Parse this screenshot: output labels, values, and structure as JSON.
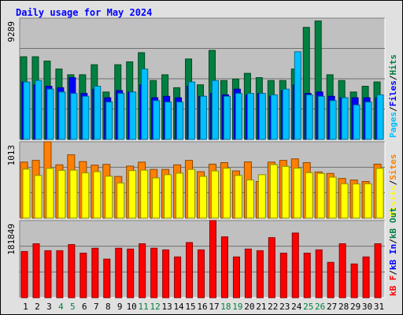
{
  "title": "Daily usage for May 2024",
  "chart_data": {
    "type": "bar",
    "title": "Daily usage for May 2024",
    "categories": [
      "1",
      "2",
      "3",
      "4",
      "5",
      "6",
      "7",
      "8",
      "9",
      "10",
      "11",
      "12",
      "13",
      "14",
      "15",
      "16",
      "17",
      "18",
      "19",
      "20",
      "21",
      "22",
      "23",
      "24",
      "25",
      "26",
      "27",
      "28",
      "29",
      "30",
      "31"
    ],
    "weekend_days": [
      "4",
      "5",
      "11",
      "12",
      "18",
      "19",
      "25",
      "26"
    ],
    "panels": [
      {
        "id": "hits",
        "ymax_label": "9289",
        "ymax": 9289,
        "legend": [
          "Pages",
          "/",
          "Files",
          "/",
          "Hits"
        ],
        "legend_colors": [
          "#00c0ff",
          "#000000",
          "#0000ff",
          "#000000",
          "#008040"
        ],
        "series": [
          {
            "name": "Hits",
            "color": "#008040",
            "values": [
              6330,
              6330,
              6000,
              5390,
              4950,
              4950,
              5720,
              3630,
              5720,
              5940,
              6640,
              4510,
              4950,
              3960,
              6160,
              4180,
              6820,
              4510,
              4620,
              5060,
              4730,
              4510,
              4510,
              5390,
              8580,
              9070,
              4950,
              4510,
              3630,
              4070,
              4400
            ]
          },
          {
            "name": "Files",
            "color": "#0000ff",
            "values": [
              4400,
              4180,
              4070,
              3960,
              4730,
              3520,
              3850,
              3190,
              3740,
              3630,
              4180,
              3190,
              3300,
              3190,
              4070,
              3300,
              3520,
              3410,
              3850,
              3410,
              3520,
              3300,
              3740,
              4180,
              3520,
              3630,
              3300,
              3190,
              3190,
              3190,
              3190
            ]
          },
          {
            "name": "Pages",
            "color": "#00c0ff",
            "values": [
              4400,
              4510,
              3850,
              3630,
              3520,
              3300,
              4070,
              2860,
              3520,
              3630,
              5390,
              2970,
              2860,
              2860,
              4400,
              3300,
              4510,
              3300,
              3520,
              3520,
              3520,
              3410,
              3850,
              6710,
              3410,
              3300,
              2970,
              3190,
              2640,
              2860,
              3410
            ]
          }
        ]
      },
      {
        "id": "visits",
        "ymax_label": "1013",
        "ymax": 1013,
        "legend": [
          "Visits",
          "/",
          "Sites"
        ],
        "legend_colors": [
          "#ffff00",
          "#000000",
          "#ff8000"
        ],
        "series": [
          {
            "name": "Sites",
            "color": "#ff8000",
            "values": [
              743,
              766,
              1013,
              707,
              840,
              750,
              703,
              713,
              553,
              690,
              743,
              646,
              646,
              707,
              766,
              616,
              716,
              736,
              626,
              746,
              486,
              743,
              766,
              786,
              736,
              613,
              593,
              526,
              506,
              486,
              716
            ]
          },
          {
            "name": "Visits",
            "color": "#ffff00",
            "values": [
              650,
              566,
              660,
              633,
              636,
              600,
              616,
              556,
              466,
              630,
              636,
              533,
              576,
              596,
              646,
              553,
              626,
              663,
              566,
              506,
              576,
              710,
              686,
              663,
              603,
              593,
              543,
              456,
              453,
              456,
              660
            ]
          }
        ]
      },
      {
        "id": "kbytes",
        "ymax_label": "181849",
        "ymax": 181849,
        "legend": [
          "kB F",
          "/",
          "kB In",
          "/",
          "kB Out"
        ],
        "legend_colors": [
          "#ff0000",
          "#000000",
          "#0000ff",
          "#000000",
          "#008040"
        ],
        "series": [
          {
            "name": "kB F",
            "color": "#ff0000",
            "values": [
              108800,
              127040,
              110720,
              110720,
              125120,
              104960,
              116480,
              90880,
              116480,
              114560,
              127040,
              116480,
              112640,
              96000,
              129920,
              112640,
              181849,
              143360,
              96000,
              114560,
              110720,
              141440,
              104960,
              152320,
              104960,
              112640,
              83200,
              127040,
              79360,
              96000,
              127040
            ]
          }
        ]
      }
    ]
  }
}
